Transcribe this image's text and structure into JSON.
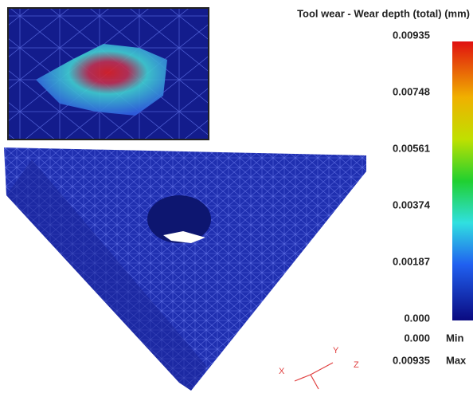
{
  "legend": {
    "title": "Tool wear - Wear depth (total) (mm)",
    "ticks": [
      "0.00935",
      "0.00748",
      "0.00561",
      "0.00374",
      "0.00187",
      "0.000"
    ],
    "min": {
      "value": "0.000",
      "label": "Min"
    },
    "max": {
      "value": "0.00935",
      "label": "Max"
    }
  },
  "axes": {
    "x": "X",
    "y": "Y",
    "z": "Z"
  }
}
